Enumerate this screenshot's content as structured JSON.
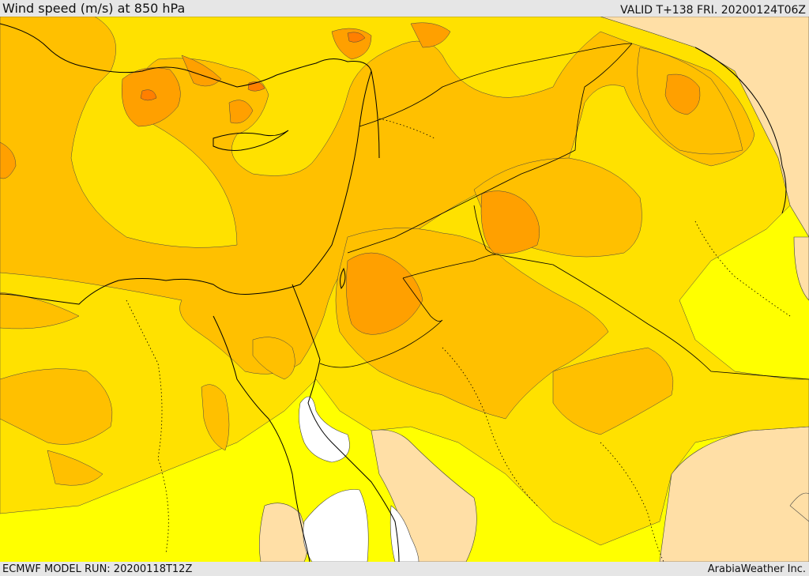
{
  "header": {
    "title": "Wind speed (m/s) at 850 hPa",
    "valid": "VALID T+138 FRI. 20200124T06Z"
  },
  "footer": {
    "model_run": "ECMWF MODEL RUN: 20200118T12Z",
    "credit": "ArabiaWeather Inc."
  },
  "colors": {
    "calm": "#ffffff",
    "light": "#ffdfa6",
    "moderate": "#ffff00",
    "fresh": "#ffe100",
    "strong": "#ffc000",
    "very_strong": "#ffa000",
    "peak": "#ff7f00",
    "coast": "#000000"
  }
}
